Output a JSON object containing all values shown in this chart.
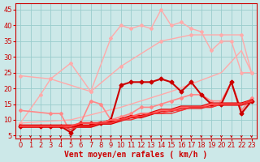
{
  "bg_color": "#cce8e8",
  "grid_color": "#99cccc",
  "xlabel": "Vent moyen/en rafales ( km/h )",
  "xlim": [
    -0.5,
    23.5
  ],
  "ylim": [
    4,
    47
  ],
  "yticks": [
    5,
    10,
    15,
    20,
    25,
    30,
    35,
    40,
    45
  ],
  "xticks": [
    0,
    1,
    2,
    3,
    4,
    5,
    6,
    7,
    8,
    9,
    10,
    11,
    12,
    13,
    14,
    15,
    16,
    17,
    18,
    19,
    20,
    21,
    22,
    23
  ],
  "lines": [
    {
      "x": [
        0,
        3,
        7,
        10,
        14,
        17,
        20,
        22,
        23
      ],
      "y": [
        24,
        23,
        19,
        27,
        35,
        37,
        37,
        37,
        25
      ],
      "color": "#ffaaaa",
      "linewidth": 1.0,
      "marker": "D",
      "markersize": 2,
      "linestyle": "-"
    },
    {
      "x": [
        0,
        2,
        3,
        5,
        7,
        9,
        10,
        11,
        12,
        13,
        14,
        15,
        16,
        17,
        18,
        19,
        20,
        21,
        22,
        23
      ],
      "y": [
        9,
        18,
        23,
        28,
        19,
        36,
        40,
        39,
        40,
        39,
        45,
        40,
        41,
        39,
        38,
        32,
        35,
        35,
        25,
        25
      ],
      "color": "#ffaaaa",
      "linewidth": 1.0,
      "marker": "D",
      "markersize": 2,
      "linestyle": "-"
    },
    {
      "x": [
        0,
        5,
        10,
        15,
        20,
        22,
        23
      ],
      "y": [
        9,
        10,
        14,
        19,
        25,
        32,
        25
      ],
      "color": "#ffaaaa",
      "linewidth": 1.0,
      "marker": null,
      "linestyle": "-"
    },
    {
      "x": [
        0,
        3,
        4,
        5,
        6,
        7,
        8,
        9,
        10,
        11,
        12,
        13,
        14,
        15,
        16,
        17,
        18,
        19,
        20,
        21,
        22,
        23
      ],
      "y": [
        13,
        12,
        12,
        6,
        9,
        16,
        15,
        10,
        11,
        12,
        14,
        14,
        15,
        16,
        17,
        18,
        18,
        16,
        16,
        22,
        13,
        17
      ],
      "color": "#ff8888",
      "linewidth": 1.2,
      "marker": "D",
      "markersize": 2,
      "linestyle": "-"
    },
    {
      "x": [
        0,
        2,
        3,
        4,
        5,
        6,
        7,
        8,
        9,
        10,
        11,
        12,
        13,
        14,
        15,
        16,
        17,
        18,
        19,
        20,
        21,
        22,
        23
      ],
      "y": [
        8,
        8,
        8,
        8,
        6,
        9,
        9,
        9,
        10,
        21,
        22,
        22,
        22,
        23,
        22,
        19,
        22,
        18,
        15,
        15,
        22,
        12,
        16
      ],
      "color": "#cc0000",
      "linewidth": 1.5,
      "marker": "D",
      "markersize": 2.5,
      "linestyle": "-"
    },
    {
      "x": [
        0,
        1,
        2,
        3,
        4,
        5,
        6,
        7,
        8,
        9,
        10,
        11,
        12,
        13,
        14,
        15,
        16,
        17,
        18,
        19,
        20,
        21,
        22,
        23
      ],
      "y": [
        8,
        8,
        8,
        8,
        8,
        8,
        8,
        8,
        9,
        9,
        10,
        11,
        11,
        12,
        13,
        13,
        14,
        14,
        14,
        15,
        15,
        15,
        15,
        16
      ],
      "color": "#dd0000",
      "linewidth": 3.0,
      "marker": null,
      "linestyle": "-"
    },
    {
      "x": [
        0,
        1,
        2,
        3,
        4,
        5,
        6,
        7,
        8,
        9,
        10,
        11,
        12,
        13,
        14,
        15,
        16,
        17,
        18,
        19,
        20,
        21,
        22,
        23
      ],
      "y": [
        8,
        8,
        8,
        8,
        8,
        8,
        9,
        9,
        9,
        10,
        10,
        11,
        12,
        12,
        13,
        13,
        14,
        14,
        14,
        15,
        15,
        15,
        15,
        16
      ],
      "color": "#ff6666",
      "linewidth": 1.5,
      "marker": null,
      "linestyle": "-"
    },
    {
      "x": [
        0,
        1,
        2,
        3,
        4,
        5,
        6,
        7,
        8,
        9,
        10,
        11,
        12,
        13,
        14,
        15,
        16,
        17,
        18,
        19,
        20,
        21,
        22,
        23
      ],
      "y": [
        8,
        8,
        8,
        8,
        8,
        8,
        9,
        9,
        9,
        9,
        10,
        11,
        11,
        12,
        12,
        13,
        13,
        14,
        14,
        14,
        15,
        15,
        15,
        16
      ],
      "color": "#ff4444",
      "linewidth": 1.2,
      "marker": null,
      "linestyle": "-"
    },
    {
      "x": [
        0,
        1,
        2,
        3,
        4,
        5,
        6,
        7,
        8,
        9,
        10,
        11,
        12,
        13,
        14,
        15,
        16,
        17,
        18,
        19,
        20,
        21,
        22,
        23
      ],
      "y": [
        8,
        8,
        8,
        8,
        8,
        7,
        8,
        8,
        9,
        9,
        10,
        10,
        11,
        12,
        12,
        12,
        13,
        14,
        14,
        14,
        15,
        15,
        15,
        16
      ],
      "color": "#ee3333",
      "linewidth": 1.0,
      "marker": null,
      "linestyle": "-"
    }
  ],
  "arrow_color": "#cc0000",
  "label_fontsize": 7,
  "tick_fontsize": 6
}
